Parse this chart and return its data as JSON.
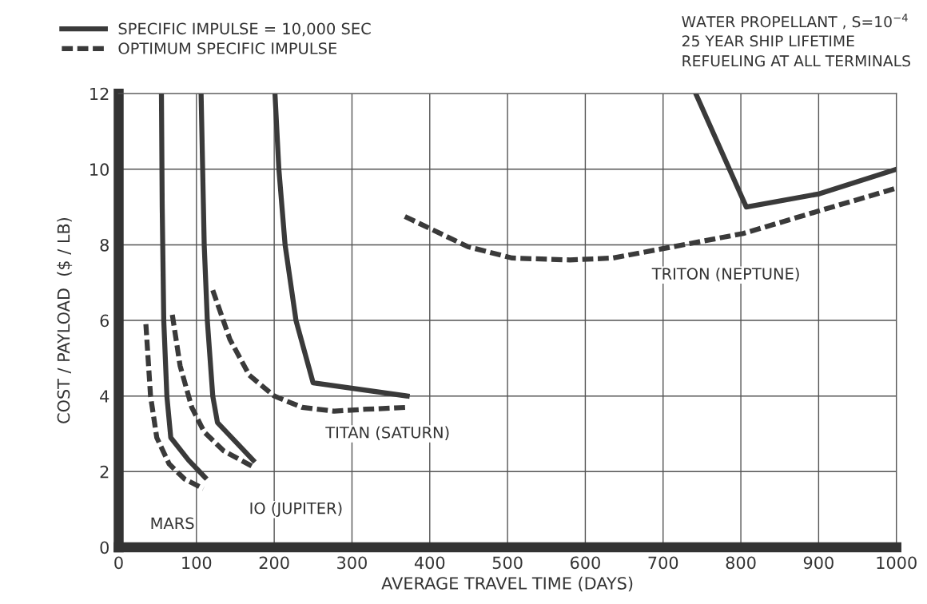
{
  "chart_data": {
    "type": "line",
    "xlabel": "AVERAGE TRAVEL TIME (DAYS)",
    "ylabel": "COST / PAYLOAD  ($ / LB)",
    "xlim": [
      0,
      1000
    ],
    "ylim": [
      0,
      12
    ],
    "xticks": [
      0,
      100,
      200,
      300,
      400,
      500,
      600,
      700,
      800,
      900,
      1000
    ],
    "yticks": [
      0,
      2,
      4,
      6,
      8,
      10,
      12
    ],
    "grid": true,
    "legend": "top left",
    "marker": "none",
    "series": [
      {
        "name": "SPECIFIC IMPULSE = 10,000 SEC",
        "color": "#3a3a3a",
        "line_style": "solid",
        "x": [
          55,
          56,
          58,
          62,
          67,
          90,
          111
        ],
        "values": [
          12,
          9,
          6,
          4,
          2.9,
          2.3,
          1.85
        ]
      },
      {
        "name": "OPTIMUM SPECIFIC IMPULSE",
        "color": "#3a3a3a",
        "line_style": "dashed",
        "x": [
          35,
          41,
          49,
          65,
          85,
          109
        ],
        "values": [
          5.9,
          4.0,
          2.9,
          2.2,
          1.8,
          1.55
        ]
      },
      {
        "color": "#3a3a3a",
        "line_style": "solid",
        "x": [
          106,
          110,
          114,
          121,
          127,
          173
        ],
        "values": [
          12,
          8,
          6,
          4,
          3.3,
          2.3
        ]
      },
      {
        "color": "#3a3a3a",
        "line_style": "dashed",
        "x": [
          69,
          79,
          94,
          110,
          135,
          171
        ],
        "values": [
          6.15,
          4.8,
          3.7,
          3.05,
          2.55,
          2.15
        ]
      },
      {
        "color": "#3a3a3a",
        "line_style": "solid",
        "x": [
          201,
          206,
          214,
          228,
          250,
          371
        ],
        "values": [
          12,
          10,
          8,
          6,
          4.35,
          4.0
        ]
      },
      {
        "color": "#3a3a3a",
        "line_style": "dashed",
        "x": [
          121,
          143,
          168,
          200,
          236,
          277,
          318,
          371
        ],
        "values": [
          6.8,
          5.5,
          4.55,
          4.0,
          3.7,
          3.6,
          3.65,
          3.7
        ]
      },
      {
        "color": "#3a3a3a",
        "line_style": "solid",
        "x": [
          742,
          807,
          901,
          1000
        ],
        "values": [
          12,
          9.0,
          9.35,
          10.0
        ]
      },
      {
        "color": "#3a3a3a",
        "line_style": "dashed",
        "x": [
          368,
          449,
          506,
          580,
          635,
          700,
          803,
          901,
          1000
        ],
        "values": [
          8.75,
          7.95,
          7.65,
          7.6,
          7.65,
          7.9,
          8.3,
          8.9,
          9.5
        ]
      }
    ],
    "annotations": [
      "MARS",
      "IO (JUPITER)",
      "TITAN (SATURN)",
      "TRITON (NEPTUNE)",
      "WATER PROPELLANT , S=10$^{−4}$",
      "25 YEAR SHIP LIFETIME",
      "REFUELING AT ALL TERMINALS"
    ]
  }
}
